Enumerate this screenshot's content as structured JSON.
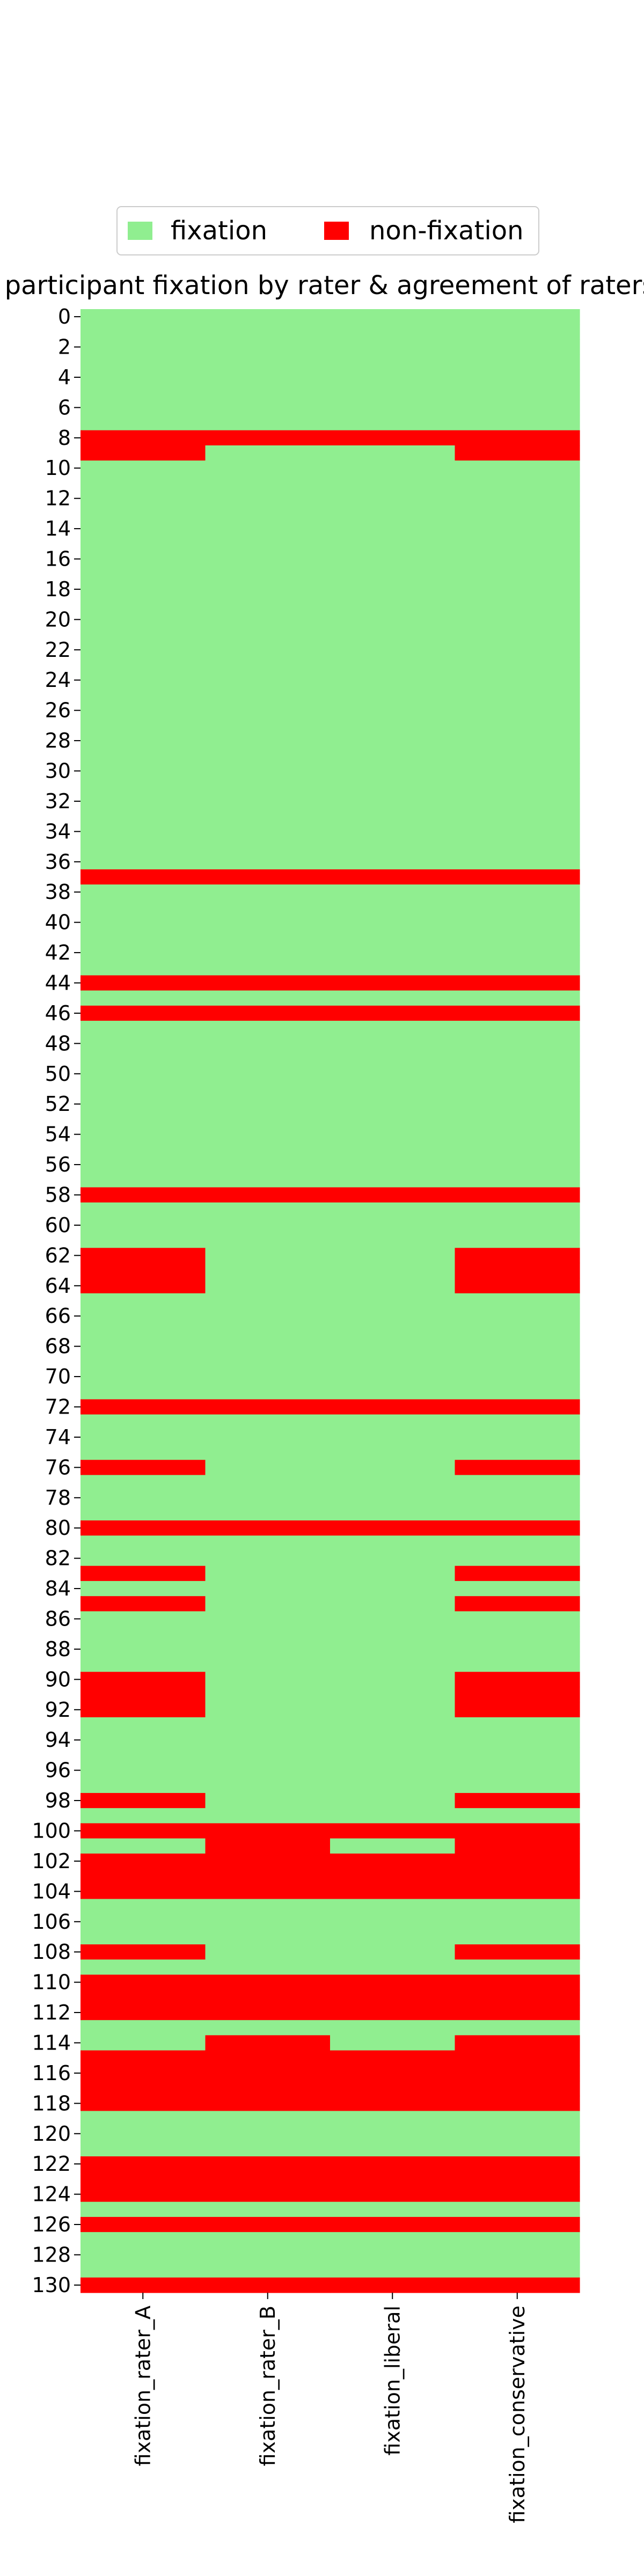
{
  "chart_data": {
    "type": "heatmap",
    "title": "participant fixation by rater & agreement of raters",
    "legend": {
      "placement": "top-center",
      "entries": [
        {
          "label": "fixation",
          "value": 1,
          "color": "#90EE90"
        },
        {
          "label": "non-fixation",
          "value": 0,
          "color": "#FF0000"
        }
      ]
    },
    "columns": [
      "fixation_rater_A",
      "fixation_rater_B",
      "fixation_liberal",
      "fixation_conservative"
    ],
    "row_count": 131,
    "y_ticks": [
      0,
      2,
      4,
      6,
      8,
      10,
      12,
      14,
      16,
      18,
      20,
      22,
      24,
      26,
      28,
      30,
      32,
      34,
      36,
      38,
      40,
      42,
      44,
      46,
      48,
      50,
      52,
      54,
      56,
      58,
      60,
      62,
      64,
      66,
      68,
      70,
      72,
      74,
      76,
      78,
      80,
      82,
      84,
      86,
      88,
      90,
      92,
      94,
      96,
      98,
      100,
      102,
      104,
      106,
      108,
      110,
      112,
      114,
      116,
      118,
      120,
      122,
      124,
      126,
      128,
      130
    ],
    "non_fixation_rows": {
      "fixation_rater_A": [
        8,
        9,
        37,
        44,
        46,
        58,
        62,
        63,
        64,
        72,
        76,
        80,
        83,
        85,
        90,
        91,
        92,
        98,
        100,
        102,
        103,
        104,
        108,
        110,
        111,
        112,
        115,
        116,
        117,
        118,
        122,
        123,
        124,
        126,
        130
      ],
      "fixation_rater_B": [
        8,
        37,
        44,
        46,
        58,
        72,
        80,
        100,
        101,
        102,
        103,
        104,
        110,
        111,
        112,
        114,
        115,
        116,
        117,
        118,
        122,
        123,
        124,
        126,
        130
      ],
      "fixation_liberal": [
        8,
        37,
        44,
        46,
        58,
        72,
        80,
        100,
        102,
        103,
        104,
        110,
        111,
        112,
        115,
        116,
        117,
        118,
        122,
        123,
        124,
        126,
        130
      ],
      "fixation_conservative": [
        8,
        9,
        37,
        44,
        46,
        58,
        62,
        63,
        64,
        72,
        76,
        80,
        83,
        85,
        90,
        91,
        92,
        98,
        100,
        101,
        102,
        103,
        104,
        108,
        110,
        111,
        112,
        114,
        115,
        116,
        117,
        118,
        122,
        123,
        124,
        126,
        130
      ]
    }
  }
}
